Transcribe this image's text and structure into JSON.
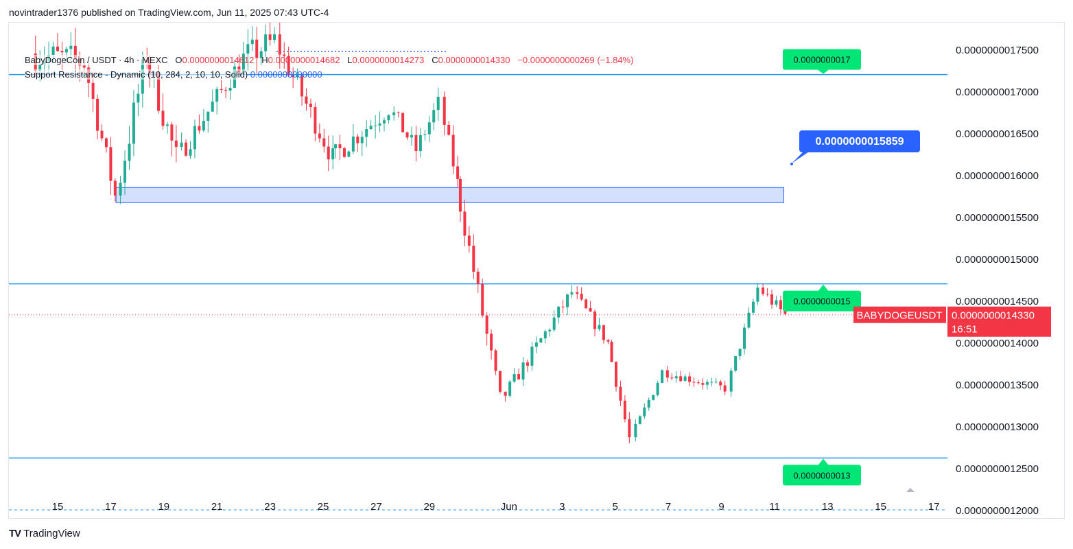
{
  "header": {
    "publish_line": "novintrader1376 published on TradingView.com, Jun 11, 2025 07:43 UTC-4"
  },
  "legend": {
    "symbol": "BabyDogeCoin / USDT · 4h · MEXC",
    "open_label": "O",
    "open": "0.0000000014612",
    "high_label": "H",
    "high": "0.0000000014682",
    "low_label": "L",
    "low": "0.0000000014273",
    "close_label": "C",
    "close": "0.0000000014330",
    "change": "−0.0000000000269 (−1.84%)",
    "indicator": "Support Resistance - Dynamic (10, 284, 2, 10, 10, Solid)",
    "indicator_value": "0.0000000000000"
  },
  "current_price_tag": {
    "symbol": "BABYDOGEUSDT",
    "price": "0.0000000014330",
    "countdown": "16:51"
  },
  "callout": {
    "label": "0.0000000015859"
  },
  "level_labels": [
    "0.0000000017",
    "0.0000000015",
    "0.0000000013"
  ],
  "footer": {
    "brand": "TradingView",
    "brand_mark": "TV"
  },
  "colors": {
    "up": "#22ab94",
    "down": "#f23645",
    "level_line": "#2196f3",
    "level_label_bg": "#00e676",
    "callout_bg": "#2962ff",
    "price_tag_bg": "#f23645"
  },
  "chart_data": {
    "type": "candlestick",
    "pair": "BabyDogeCoin / USDT",
    "interval": "4h",
    "exchange": "MEXC",
    "y_axis": {
      "scale_factor": 1e-13,
      "ticks": [
        "0.0000000012000",
        "0.0000000012500",
        "0.0000000013000",
        "0.0000000013500",
        "0.0000000014000",
        "0.0000000014500",
        "0.0000000015000",
        "0.0000000015500",
        "0.0000000016000",
        "0.0000000016500",
        "0.0000000017000",
        "0.0000000017500"
      ]
    },
    "x_axis": {
      "ticks": [
        {
          "label": "15",
          "day": 15
        },
        {
          "label": "17",
          "day": 17
        },
        {
          "label": "19",
          "day": 19
        },
        {
          "label": "21",
          "day": 21
        },
        {
          "label": "23",
          "day": 23
        },
        {
          "label": "25",
          "day": 25
        },
        {
          "label": "27",
          "day": 27
        },
        {
          "label": "29",
          "day": 29
        },
        {
          "label": "Jun",
          "day": 32
        },
        {
          "label": "3",
          "day": 34
        },
        {
          "label": "5",
          "day": 36
        },
        {
          "label": "7",
          "day": 38
        },
        {
          "label": "9",
          "day": 40
        },
        {
          "label": "11",
          "day": 42
        },
        {
          "label": "13",
          "day": 44
        },
        {
          "label": "15",
          "day": 46
        },
        {
          "label": "17",
          "day": 48
        }
      ]
    },
    "horizontal_levels": [
      {
        "price": 17.2,
        "label": "0.0000000017"
      },
      {
        "price": 14.7,
        "label": "0.0000000015"
      },
      {
        "price": 12.62,
        "label": "0.0000000013"
      }
    ],
    "zone": {
      "top": 15.85,
      "bottom": 15.67,
      "start_day": 17.2,
      "end_day": 42.35
    },
    "current_price": 14.33,
    "dashed_bottom_level": 12.0,
    "segments": [
      {
        "from_day": 14.0,
        "to_day": 16.0,
        "start": 17.45,
        "end": 17.35,
        "vol": 0.18
      },
      {
        "from_day": 16.0,
        "to_day": 17.2,
        "start": 17.35,
        "end": 15.75,
        "vol": 0.14
      },
      {
        "from_day": 17.2,
        "to_day": 18.3,
        "start": 15.75,
        "end": 17.45,
        "vol": 0.18
      },
      {
        "from_day": 18.3,
        "to_day": 19.5,
        "start": 17.45,
        "end": 16.2,
        "vol": 0.16
      },
      {
        "from_day": 19.5,
        "to_day": 22.0,
        "start": 16.2,
        "end": 17.4,
        "vol": 0.12
      },
      {
        "from_day": 22.0,
        "to_day": 23.2,
        "start": 17.4,
        "end": 17.6,
        "vol": 0.16
      },
      {
        "from_day": 23.2,
        "to_day": 25.3,
        "start": 17.6,
        "end": 16.2,
        "vol": 0.13
      },
      {
        "from_day": 25.3,
        "to_day": 27.5,
        "start": 16.2,
        "end": 16.8,
        "vol": 0.12
      },
      {
        "from_day": 27.5,
        "to_day": 28.5,
        "start": 16.8,
        "end": 16.3,
        "vol": 0.1
      },
      {
        "from_day": 28.5,
        "to_day": 29.4,
        "start": 16.3,
        "end": 16.85,
        "vol": 0.1
      },
      {
        "from_day": 29.4,
        "to_day": 30.0,
        "start": 16.85,
        "end": 15.9,
        "vol": 0.1
      },
      {
        "from_day": 30.0,
        "to_day": 31.7,
        "start": 15.9,
        "end": 13.3,
        "vol": 0.12
      },
      {
        "from_day": 31.7,
        "to_day": 34.4,
        "start": 13.3,
        "end": 14.6,
        "vol": 0.08
      },
      {
        "from_day": 34.4,
        "to_day": 35.7,
        "start": 14.6,
        "end": 14.0,
        "vol": 0.07
      },
      {
        "from_day": 35.7,
        "to_day": 36.6,
        "start": 14.0,
        "end": 12.85,
        "vol": 0.07
      },
      {
        "from_day": 36.6,
        "to_day": 37.8,
        "start": 12.85,
        "end": 13.65,
        "vol": 0.06
      },
      {
        "from_day": 37.8,
        "to_day": 40.2,
        "start": 13.65,
        "end": 13.45,
        "vol": 0.05
      },
      {
        "from_day": 40.2,
        "to_day": 41.4,
        "start": 13.45,
        "end": 14.65,
        "vol": 0.06
      },
      {
        "from_day": 41.4,
        "to_day": 42.35,
        "start": 14.65,
        "end": 14.33,
        "vol": 0.07
      }
    ]
  }
}
